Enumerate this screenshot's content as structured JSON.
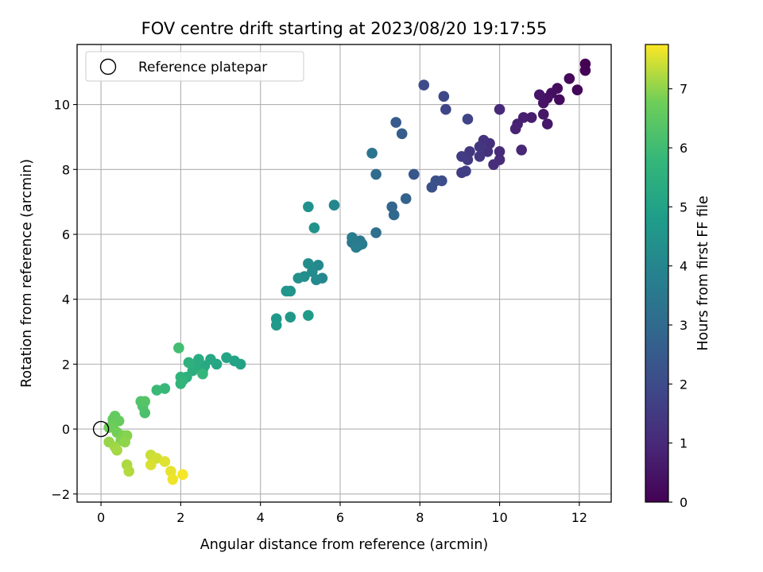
{
  "chart_data": {
    "type": "scatter",
    "title": "FOV centre drift starting at 2023/08/20 19:17:55",
    "xlabel": "Angular distance from reference (arcmin)",
    "ylabel": "Rotation from reference (arcmin)",
    "xlim": [
      -0.6,
      12.8
    ],
    "ylim": [
      -2.25,
      11.85
    ],
    "xticks": [
      0,
      2,
      4,
      6,
      8,
      10,
      12
    ],
    "yticks": [
      -2,
      0,
      2,
      4,
      6,
      8,
      10
    ],
    "grid": true,
    "legend": {
      "placement": "top-left",
      "entries": [
        "Reference platepar"
      ]
    },
    "reference_point": {
      "x": 0,
      "y": 0,
      "marker": "open-circle"
    },
    "colorbar": {
      "label": "Hours from first FF file",
      "colormap": "viridis",
      "range": [
        0,
        7.75
      ],
      "ticks": [
        0,
        1,
        2,
        3,
        4,
        5,
        6,
        7
      ]
    },
    "series": [
      {
        "columns": [
          "x",
          "y",
          "hours"
        ],
        "points": [
          [
            12.15,
            11.25,
            0.0
          ],
          [
            12.15,
            11.05,
            0.05
          ],
          [
            11.95,
            10.45,
            0.12
          ],
          [
            11.75,
            10.8,
            0.18
          ],
          [
            11.5,
            10.15,
            0.25
          ],
          [
            11.45,
            10.5,
            0.3
          ],
          [
            11.3,
            10.35,
            0.35
          ],
          [
            11.2,
            10.2,
            0.4
          ],
          [
            11.1,
            10.05,
            0.45
          ],
          [
            11.0,
            10.3,
            0.5
          ],
          [
            11.1,
            9.7,
            0.55
          ],
          [
            11.2,
            9.4,
            0.6
          ],
          [
            10.8,
            9.6,
            0.7
          ],
          [
            10.6,
            9.6,
            0.75
          ],
          [
            10.45,
            9.4,
            0.8
          ],
          [
            10.4,
            9.25,
            0.85
          ],
          [
            10.55,
            8.6,
            0.95
          ],
          [
            10.0,
            9.85,
            1.0
          ],
          [
            10.0,
            8.55,
            1.05
          ],
          [
            10.0,
            8.3,
            1.1
          ],
          [
            9.85,
            8.15,
            1.15
          ],
          [
            9.75,
            8.8,
            1.2
          ],
          [
            9.7,
            8.55,
            1.25
          ],
          [
            9.6,
            8.9,
            1.3
          ],
          [
            9.5,
            8.7,
            1.35
          ],
          [
            9.5,
            8.4,
            1.4
          ],
          [
            9.25,
            8.55,
            1.45
          ],
          [
            9.2,
            8.3,
            1.5
          ],
          [
            9.05,
            8.4,
            1.55
          ],
          [
            9.05,
            7.9,
            1.6
          ],
          [
            9.15,
            7.95,
            1.65
          ],
          [
            9.2,
            9.55,
            1.75
          ],
          [
            8.65,
            9.85,
            1.85
          ],
          [
            8.6,
            10.25,
            1.9
          ],
          [
            8.1,
            10.6,
            2.0
          ],
          [
            8.55,
            7.65,
            2.1
          ],
          [
            8.4,
            7.65,
            2.15
          ],
          [
            8.3,
            7.45,
            2.2
          ],
          [
            7.85,
            7.85,
            2.35
          ],
          [
            7.4,
            9.45,
            2.5
          ],
          [
            7.55,
            9.1,
            2.6
          ],
          [
            7.65,
            7.1,
            2.75
          ],
          [
            7.3,
            6.85,
            2.85
          ],
          [
            7.35,
            6.6,
            2.9
          ],
          [
            6.9,
            7.85,
            3.05
          ],
          [
            6.9,
            6.05,
            3.2
          ],
          [
            6.8,
            8.5,
            3.35
          ],
          [
            6.5,
            5.8,
            3.45
          ],
          [
            6.45,
            5.65,
            3.5
          ],
          [
            6.3,
            5.75,
            3.55
          ],
          [
            6.3,
            5.9,
            3.6
          ],
          [
            6.55,
            5.7,
            3.65
          ],
          [
            6.4,
            5.6,
            3.7
          ],
          [
            5.85,
            6.9,
            4.0
          ],
          [
            5.55,
            4.65,
            4.05
          ],
          [
            5.45,
            5.05,
            4.1
          ],
          [
            5.4,
            4.6,
            4.15
          ],
          [
            5.3,
            4.85,
            4.2
          ],
          [
            5.2,
            5.1,
            4.25
          ],
          [
            5.1,
            4.7,
            4.3
          ],
          [
            4.95,
            4.65,
            4.35
          ],
          [
            5.2,
            6.85,
            4.4
          ],
          [
            5.35,
            6.2,
            4.45
          ],
          [
            4.75,
            4.25,
            4.5
          ],
          [
            4.65,
            4.25,
            4.55
          ],
          [
            4.75,
            3.45,
            4.6
          ],
          [
            4.4,
            3.4,
            4.65
          ],
          [
            4.4,
            3.2,
            4.7
          ],
          [
            5.2,
            3.5,
            4.75
          ],
          [
            3.5,
            2.0,
            5.0
          ],
          [
            3.35,
            2.1,
            5.05
          ],
          [
            3.15,
            2.2,
            5.1
          ],
          [
            2.9,
            2.0,
            5.15
          ],
          [
            2.75,
            2.15,
            5.2
          ],
          [
            2.6,
            1.95,
            5.25
          ],
          [
            2.55,
            1.8,
            5.3
          ],
          [
            2.45,
            2.15,
            5.35
          ],
          [
            2.35,
            2.0,
            5.4
          ],
          [
            2.3,
            1.8,
            5.45
          ],
          [
            2.15,
            1.6,
            5.5
          ],
          [
            2.2,
            2.05,
            5.55
          ],
          [
            2.05,
            1.5,
            5.6
          ],
          [
            2.0,
            1.6,
            5.65
          ],
          [
            2.0,
            1.4,
            5.7
          ],
          [
            2.55,
            1.7,
            5.75
          ],
          [
            1.6,
            1.25,
            5.85
          ],
          [
            1.4,
            1.2,
            5.9
          ],
          [
            1.95,
            2.5,
            6.05
          ],
          [
            1.1,
            0.5,
            6.2
          ],
          [
            1.05,
            0.7,
            6.25
          ],
          [
            1.0,
            0.85,
            6.3
          ],
          [
            1.1,
            0.85,
            6.35
          ],
          [
            0.3,
            0.3,
            6.55
          ],
          [
            0.35,
            0.4,
            6.6
          ],
          [
            0.45,
            0.25,
            6.65
          ],
          [
            0.3,
            0.1,
            6.7
          ],
          [
            0.2,
            0.05,
            6.75
          ],
          [
            0.4,
            -0.1,
            6.8
          ],
          [
            0.55,
            -0.2,
            6.85
          ],
          [
            0.5,
            -0.35,
            6.9
          ],
          [
            0.65,
            -0.2,
            6.95
          ],
          [
            0.6,
            -0.4,
            7.0
          ],
          [
            0.2,
            -0.4,
            7.05
          ],
          [
            0.35,
            -0.55,
            7.1
          ],
          [
            0.4,
            -0.65,
            7.15
          ],
          [
            0.65,
            -1.1,
            7.2
          ],
          [
            0.7,
            -1.3,
            7.25
          ],
          [
            1.25,
            -0.8,
            7.4
          ],
          [
            1.4,
            -0.9,
            7.45
          ],
          [
            1.25,
            -1.1,
            7.5
          ],
          [
            1.6,
            -1.0,
            7.55
          ],
          [
            1.75,
            -1.3,
            7.6
          ],
          [
            1.8,
            -1.55,
            7.65
          ],
          [
            2.05,
            -1.4,
            7.7
          ]
        ]
      }
    ]
  }
}
